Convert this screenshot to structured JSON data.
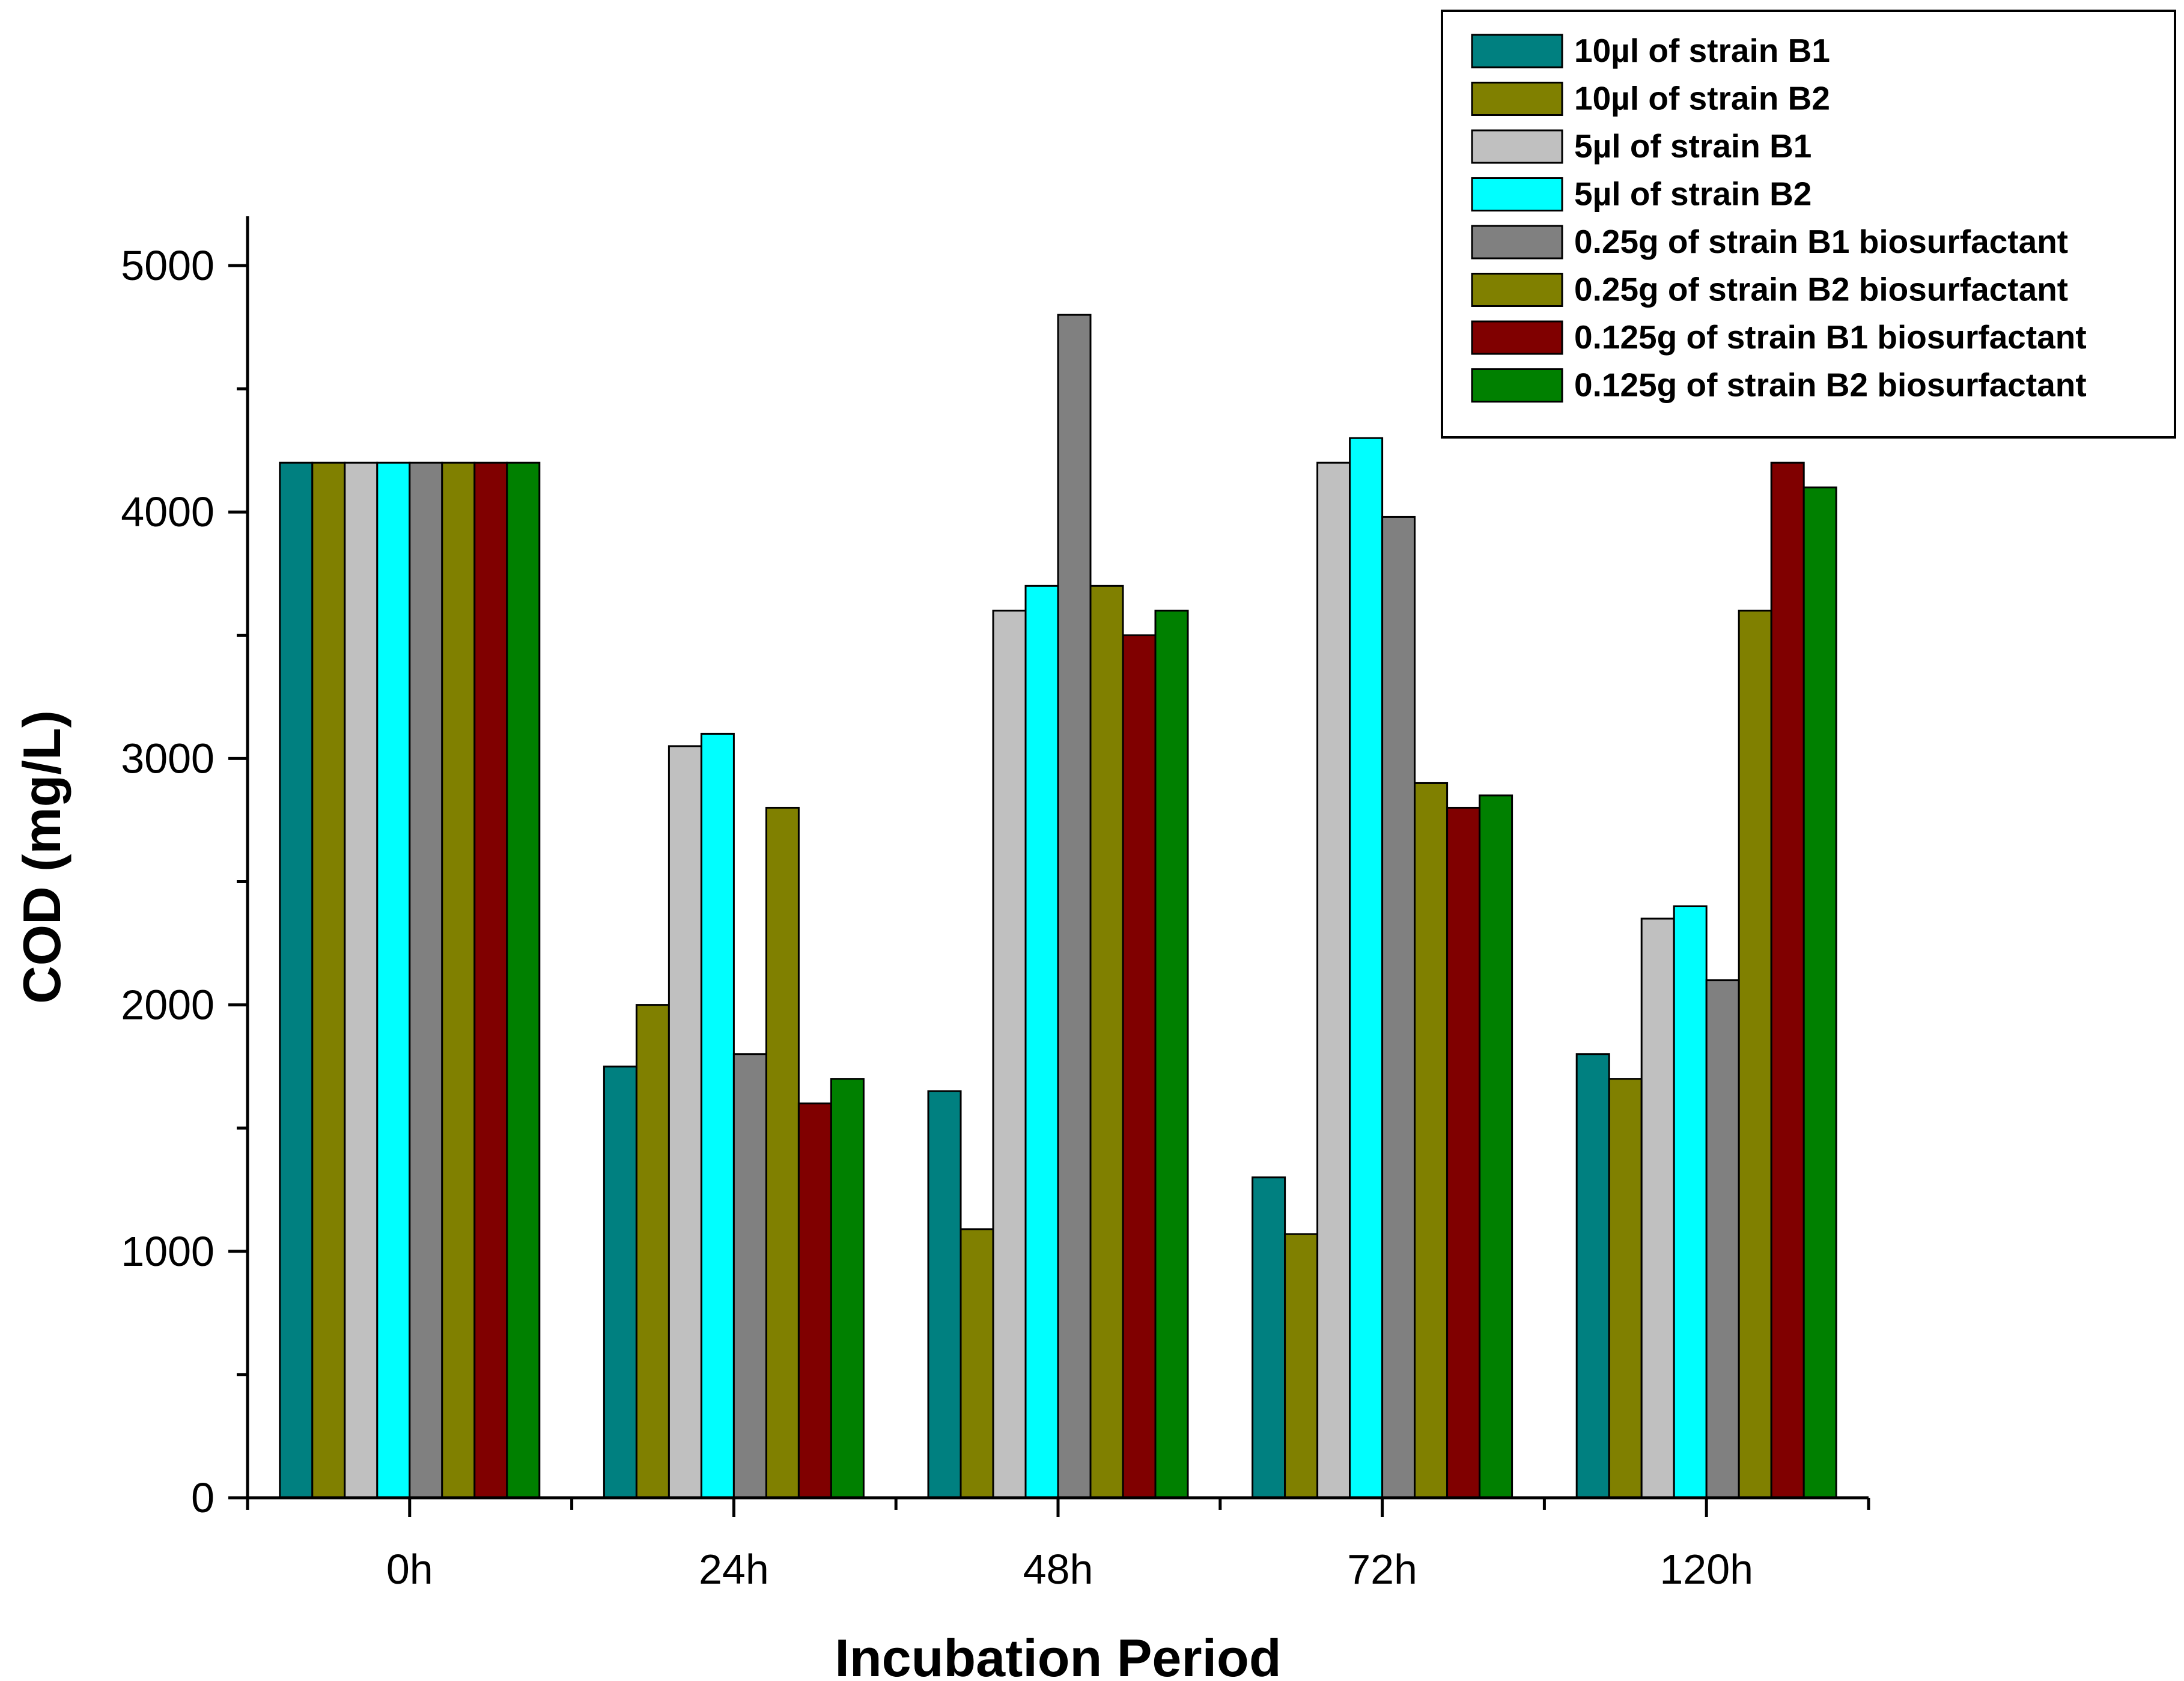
{
  "chart_data": {
    "type": "bar",
    "xlabel": "Incubation Period",
    "ylabel": "COD (mg/L)",
    "ylim": [
      0,
      5200
    ],
    "yticks": [
      0,
      1000,
      2000,
      3000,
      4000,
      5000
    ],
    "categories": [
      "0h",
      "24h",
      "48h",
      "72h",
      "120h"
    ],
    "legend_position": "top-right",
    "series": [
      {
        "name": "10µl of strain B1",
        "color": "#008080",
        "values": [
          4200,
          1750,
          1650,
          1300,
          1800
        ]
      },
      {
        "name": "10µl of strain B2",
        "color": "#808000",
        "values": [
          4200,
          2000,
          1090,
          1070,
          1700
        ]
      },
      {
        "name": "5µl of strain B1",
        "color": "#C0C0C0",
        "values": [
          4200,
          3050,
          3600,
          4200,
          2350
        ]
      },
      {
        "name": "5µl of strain B2",
        "color": "#00FFFF",
        "values": [
          4200,
          3100,
          3700,
          4300,
          2400
        ]
      },
      {
        "name": "0.25g of strain B1 biosurfactant",
        "color": "#808080",
        "values": [
          4200,
          1800,
          4800,
          3980,
          2100
        ]
      },
      {
        "name": "0.25g of strain B2 biosurfactant",
        "color": "#808000",
        "values": [
          4200,
          2800,
          3700,
          2900,
          3600
        ]
      },
      {
        "name": "0.125g of strain B1 biosurfactant",
        "color": "#800000",
        "values": [
          4200,
          1600,
          3500,
          2800,
          4200
        ]
      },
      {
        "name": "0.125g of strain B2 biosurfactant",
        "color": "#008000",
        "values": [
          4200,
          1700,
          3600,
          2850,
          4100
        ]
      }
    ]
  }
}
